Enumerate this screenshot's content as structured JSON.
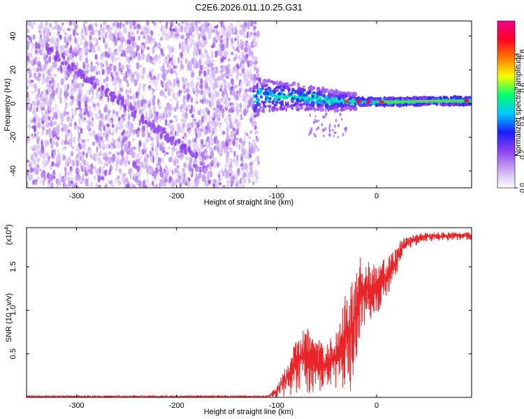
{
  "figure_title": "C2E6.2026.011.10.25.G31",
  "chart_data": [
    {
      "type": "heatmap",
      "title": "C2E6.2026.011.10.25.G31",
      "xlabel": "Height of straight line (km)",
      "ylabel": "Frequency (Hz)",
      "xlim": [
        -350,
        95
      ],
      "ylim": [
        -50,
        49
      ],
      "xticks": [
        -300,
        -200,
        -100,
        0
      ],
      "yticks": [
        -40,
        -20,
        0,
        20,
        40
      ],
      "colorbar": {
        "label": "Normalized spectral amplitude",
        "range": [
          0.0,
          1.0
        ],
        "ticks": [
          "0.0",
          "0.2",
          "0.4",
          "0.6",
          "0.8"
        ],
        "colormap": [
          "#ffffff",
          "#c9a6f2",
          "#8d3ff0",
          "#1a1fff",
          "#00c8ff",
          "#00ff70",
          "#f6ff00",
          "#ff7a00",
          "#ff0028",
          "#f0008a"
        ]
      },
      "features": {
        "noise_region_x": [
          -350,
          -122
        ],
        "signal_band_x": [
          -122,
          95
        ],
        "signal_center_hz": [
          {
            "x": -120,
            "y": 5
          },
          {
            "x": -80,
            "y": 4
          },
          {
            "x": -40,
            "y": 1.5
          },
          {
            "x": -10,
            "y": 1
          },
          {
            "x": 20,
            "y": 1
          },
          {
            "x": 60,
            "y": 1.5
          },
          {
            "x": 95,
            "y": 1.5
          }
        ],
        "diagonal_streak": [
          {
            "x": -330,
            "y": 33
          },
          {
            "x": -180,
            "y": -32
          }
        ]
      }
    },
    {
      "type": "line",
      "xlabel": "Height of straight line (km)",
      "ylabel": "SNR (10 * v/v)",
      "multiplier_label": "(x10^4)",
      "multiplier_text": "(x10",
      "multiplier_exp": "4",
      "multiplier_close": ")",
      "xlim": [
        -350,
        95
      ],
      "ylim": [
        0,
        1.95
      ],
      "xticks": [
        -300,
        -200,
        -100,
        0
      ],
      "yticks": [
        "0.5",
        "1.0",
        "1.5"
      ],
      "series": [
        {
          "name": "SNR",
          "color": "#e8262a",
          "envelope": [
            {
              "x": -350,
              "low": 0.0,
              "high": 0.02
            },
            {
              "x": -110,
              "low": 0.0,
              "high": 0.02
            },
            {
              "x": -100,
              "low": 0.0,
              "high": 0.12
            },
            {
              "x": -85,
              "low": 0.02,
              "high": 0.55
            },
            {
              "x": -72,
              "low": 0.05,
              "high": 0.85
            },
            {
              "x": -60,
              "low": 0.05,
              "high": 0.68
            },
            {
              "x": -50,
              "low": 0.08,
              "high": 0.62
            },
            {
              "x": -40,
              "low": 0.1,
              "high": 0.8
            },
            {
              "x": -33,
              "low": 0.1,
              "high": 1.15
            },
            {
              "x": -26,
              "low": 0.05,
              "high": 1.3
            },
            {
              "x": -20,
              "low": 0.25,
              "high": 1.55
            },
            {
              "x": -15,
              "low": 0.75,
              "high": 1.65
            },
            {
              "x": -8,
              "low": 0.85,
              "high": 1.6
            },
            {
              "x": 0,
              "low": 0.95,
              "high": 1.5
            },
            {
              "x": 10,
              "low": 1.12,
              "high": 1.62
            },
            {
              "x": 18,
              "low": 1.3,
              "high": 1.7
            },
            {
              "x": 25,
              "low": 1.6,
              "high": 1.82
            },
            {
              "x": 35,
              "low": 1.72,
              "high": 1.87
            },
            {
              "x": 50,
              "low": 1.79,
              "high": 1.9
            },
            {
              "x": 70,
              "low": 1.8,
              "high": 1.9
            },
            {
              "x": 95,
              "low": 1.81,
              "high": 1.9
            }
          ]
        }
      ]
    }
  ]
}
